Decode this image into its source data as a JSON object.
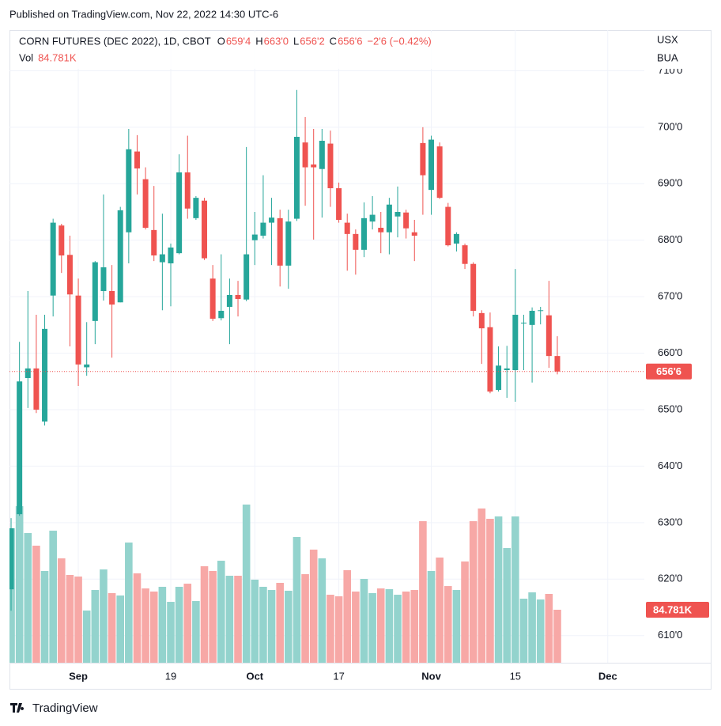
{
  "published": "Published on TradingView.com, Nov 22, 2022 14:30 UTC-6",
  "brand": "TradingView",
  "chart_data": {
    "type": "candlestick",
    "legend": {
      "title": "CORN FUTURES (DEC 2022), 1D, CBOT",
      "ohlc": [
        {
          "key": "O",
          "value": "659'4"
        },
        {
          "key": "H",
          "value": "663'0"
        },
        {
          "key": "L",
          "value": "656'2"
        },
        {
          "key": "C",
          "value": "656'6"
        }
      ],
      "change": "−2'6 (−0.42%)",
      "volume_key": "Vol",
      "volume_value": "84.781K"
    },
    "currency": "USX",
    "unit": "BUA",
    "colors": {
      "up": "#26a69a",
      "down": "#ef5350",
      "volume_up": "#93d3cd",
      "volume_down": "#f7a8a6"
    },
    "ohlc": {
      "open": [
        618.2,
        631.5,
        655.6,
        657.3,
        647.9,
        670.2,
        682.6,
        677.4,
        670.2,
        657.5,
        665.7,
        671.0,
        671.0,
        669.0,
        681.4,
        695.7,
        690.8,
        681.8,
        676.1,
        675.9,
        677.7,
        692.0,
        683.9,
        687.0,
        673.2,
        666.2,
        668.2,
        670.3,
        669.5,
        680.0,
        680.8,
        683.1,
        683.9,
        675.5,
        683.8,
        697.3,
        693.4,
        692.6,
        697.1,
        689.2,
        683.1,
        681.1,
        678.3,
        683.3,
        682.2,
        681.4,
        684.2,
        684.9,
        681.4,
        697.2,
        688.9,
        696.6,
        685.9,
        679.4,
        679.1,
        675.8,
        667.1,
        664.6,
        653.5,
        657.0,
        657.0,
        665.3,
        665.0,
        667.5,
        666.7,
        659.5
      ],
      "high": [
        630.8,
        662.0,
        671.0,
        666.8,
        666.8,
        683.8,
        682.9,
        680.8,
        673.2,
        665.5,
        676.3,
        688.1,
        675.6,
        685.9,
        699.7,
        698.6,
        692.9,
        689.6,
        684.7,
        679.4,
        695.2,
        698.5,
        687.8,
        687.5,
        675.6,
        677.5,
        673.2,
        672.8,
        696.5,
        685.0,
        691.5,
        687.5,
        685.4,
        685.4,
        706.6,
        701.8,
        699.7,
        699.7,
        699.4,
        690.2,
        684.7,
        681.9,
        686.7,
        687.8,
        685.0,
        687.5,
        689.5,
        685.4,
        683.6,
        700.0,
        698.5,
        697.3,
        686.6,
        681.4,
        679.4,
        676.1,
        667.6,
        667.2,
        661.2,
        661.3,
        674.9,
        666.8,
        668.1,
        668.2,
        672.8,
        663.0
      ],
      "low": [
        614.4,
        631.2,
        650.3,
        649.4,
        647.2,
        666.5,
        674.2,
        661.2,
        654.2,
        656.0,
        661.6,
        669.3,
        659.2,
        669.0,
        675.9,
        688.1,
        681.9,
        676.3,
        667.6,
        668.3,
        677.5,
        683.8,
        683.6,
        676.5,
        665.7,
        665.8,
        661.6,
        666.5,
        669.2,
        675.6,
        680.3,
        675.6,
        671.8,
        671.4,
        683.4,
        686.1,
        680.1,
        684.0,
        685.9,
        683.1,
        674.6,
        673.9,
        677.0,
        681.9,
        677.7,
        677.5,
        680.5,
        680.3,
        676.3,
        684.5,
        684.5,
        687.3,
        678.9,
        678.0,
        674.9,
        666.5,
        658.1,
        652.9,
        653.2,
        652.1,
        651.4,
        657.0,
        654.8,
        665.1,
        657.4,
        656.25
      ],
      "close": [
        629.0,
        655.0,
        657.3,
        650.0,
        664.3,
        683.1,
        677.3,
        670.4,
        658.0,
        658.0,
        676.1,
        675.2,
        668.6,
        685.3,
        696.1,
        692.7,
        682.2,
        677.3,
        677.5,
        678.7,
        692.0,
        685.6,
        687.5,
        676.8,
        666.1,
        667.5,
        670.3,
        669.6,
        677.5,
        681.0,
        683.1,
        684.0,
        675.5,
        683.3,
        698.3,
        692.9,
        692.9,
        697.6,
        689.2,
        683.6,
        681.1,
        678.3,
        683.9,
        684.5,
        681.4,
        686.3,
        685.0,
        682.1,
        680.8,
        691.5,
        697.8,
        687.5,
        679.1,
        681.1,
        675.8,
        667.5,
        664.4,
        653.2,
        657.8,
        657.3,
        666.8,
        665.4,
        667.5,
        667.6,
        659.5,
        656.75
      ]
    },
    "volume": [
      215100,
      250500,
      207500,
      187300,
      146800,
      211300,
      167000,
      140500,
      137900,
      83500,
      116400,
      149300,
      111400,
      107600,
      192300,
      143000,
      118900,
      113900,
      121500,
      97400,
      121500,
      126500,
      98700,
      154400,
      146800,
      163200,
      139200,
      139200,
      253100,
      132900,
      121500,
      116400,
      127800,
      115200,
      201200,
      141700,
      181000,
      167000,
      108800,
      106300,
      148100,
      113900,
      134100,
      111400,
      118900,
      117700,
      108800,
      113900,
      116400,
      226500,
      146800,
      168300,
      122700,
      116400,
      162000,
      226500,
      246800,
      230300,
      234100,
      183500,
      234100,
      102500,
      112600,
      101200,
      110100,
      84781
    ],
    "last_price": {
      "value": 656.75,
      "label": "656'6"
    },
    "xlim": [
      -0.19,
      75.35
    ],
    "xticks": [
      {
        "value": 8,
        "label": "Sep"
      },
      {
        "value": 19,
        "label": "19"
      },
      {
        "value": 29,
        "label": "Oct"
      },
      {
        "value": 39,
        "label": "17"
      },
      {
        "value": 50,
        "label": "Nov"
      },
      {
        "value": 60,
        "label": "15"
      },
      {
        "value": 71,
        "label": "Dec"
      }
    ],
    "ylim": [
      605.2,
      717.2
    ],
    "yticks": [
      {
        "value": 610,
        "label": "610'0"
      },
      {
        "value": 620,
        "label": "620'0"
      },
      {
        "value": 630,
        "label": "630'0"
      },
      {
        "value": 640,
        "label": "640'0"
      },
      {
        "value": 650,
        "label": "650'0"
      },
      {
        "value": 660,
        "label": "660'0"
      },
      {
        "value": 670,
        "label": "670'0"
      },
      {
        "value": 680,
        "label": "680'0"
      },
      {
        "value": 690,
        "label": "690'0"
      },
      {
        "value": 700,
        "label": "700'0"
      },
      {
        "value": 710,
        "label": "710'0"
      }
    ],
    "grid": true
  }
}
